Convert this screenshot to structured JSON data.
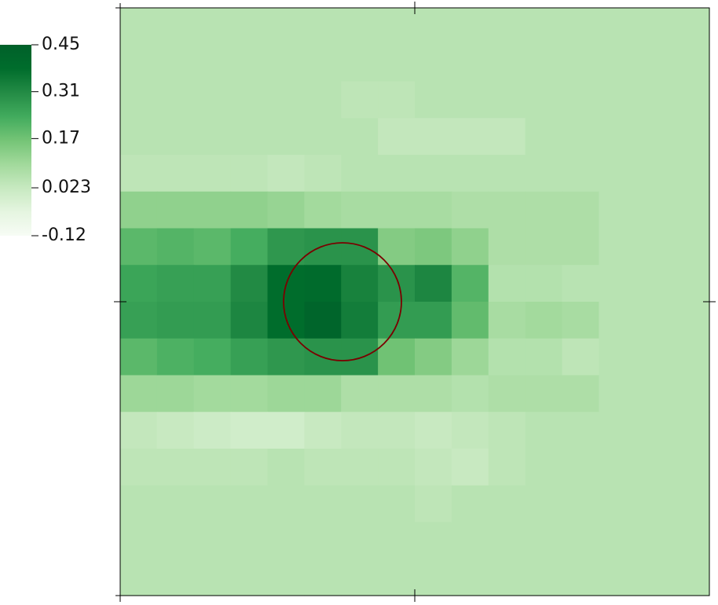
{
  "chart_data": {
    "type": "heatmap",
    "colorscale": [
      "#f7fcf5",
      "#e5f5e0",
      "#c7e9c0",
      "#a1d99b",
      "#74c476",
      "#41ab5d",
      "#238b45",
      "#006d2c",
      "#00602a"
    ],
    "zlim": [
      -0.12,
      0.45
    ],
    "zticks": [
      0.45,
      0.31,
      0.17,
      0.023,
      -0.12
    ],
    "z": [
      [
        0.05,
        0.05,
        0.05,
        0.05,
        0.05,
        0.05,
        0.05,
        0.05,
        0.05,
        0.05,
        0.05,
        0.05,
        0.05,
        0.05,
        0.05,
        0.05
      ],
      [
        0.05,
        0.05,
        0.05,
        0.05,
        0.05,
        0.05,
        0.05,
        0.05,
        0.05,
        0.05,
        0.05,
        0.05,
        0.05,
        0.05,
        0.05,
        0.05
      ],
      [
        0.05,
        0.05,
        0.05,
        0.05,
        0.05,
        0.05,
        0.04,
        0.04,
        0.05,
        0.05,
        0.05,
        0.05,
        0.05,
        0.05,
        0.05,
        0.05
      ],
      [
        0.05,
        0.05,
        0.05,
        0.05,
        0.05,
        0.05,
        0.05,
        0.03,
        0.03,
        0.03,
        0.03,
        0.05,
        0.05,
        0.05,
        0.05,
        0.05
      ],
      [
        0.04,
        0.04,
        0.04,
        0.04,
        0.03,
        0.04,
        0.05,
        0.05,
        0.05,
        0.05,
        0.05,
        0.05,
        0.05,
        0.05,
        0.05,
        0.05
      ],
      [
        0.12,
        0.12,
        0.12,
        0.12,
        0.11,
        0.09,
        0.08,
        0.08,
        0.08,
        0.07,
        0.07,
        0.07,
        0.07,
        0.05,
        0.05,
        0.05
      ],
      [
        0.2,
        0.21,
        0.2,
        0.23,
        0.28,
        0.29,
        0.29,
        0.14,
        0.15,
        0.12,
        0.07,
        0.07,
        0.07,
        0.05,
        0.05,
        0.05
      ],
      [
        0.25,
        0.26,
        0.26,
        0.31,
        0.38,
        0.39,
        0.33,
        0.29,
        0.32,
        0.21,
        0.06,
        0.06,
        0.05,
        0.05,
        0.05,
        0.05
      ],
      [
        0.26,
        0.27,
        0.27,
        0.32,
        0.38,
        0.42,
        0.34,
        0.27,
        0.27,
        0.19,
        0.08,
        0.09,
        0.08,
        0.05,
        0.05,
        0.05
      ],
      [
        0.2,
        0.22,
        0.23,
        0.26,
        0.28,
        0.29,
        0.29,
        0.17,
        0.14,
        0.1,
        0.06,
        0.06,
        0.04,
        0.05,
        0.05,
        0.05
      ],
      [
        0.1,
        0.1,
        0.09,
        0.09,
        0.1,
        0.1,
        0.07,
        0.07,
        0.07,
        0.06,
        0.07,
        0.07,
        0.07,
        0.05,
        0.05,
        0.05
      ],
      [
        0.03,
        0.02,
        0.01,
        0.0,
        0.0,
        0.02,
        0.03,
        0.03,
        0.02,
        0.03,
        0.04,
        0.05,
        0.05,
        0.05,
        0.05,
        0.05
      ],
      [
        0.04,
        0.04,
        0.04,
        0.04,
        0.05,
        0.04,
        0.04,
        0.04,
        0.03,
        0.02,
        0.04,
        0.05,
        0.05,
        0.05,
        0.05,
        0.05
      ],
      [
        0.05,
        0.05,
        0.05,
        0.05,
        0.05,
        0.05,
        0.05,
        0.05,
        0.04,
        0.05,
        0.05,
        0.05,
        0.05,
        0.05,
        0.05,
        0.05
      ],
      [
        0.05,
        0.05,
        0.05,
        0.05,
        0.05,
        0.05,
        0.05,
        0.05,
        0.05,
        0.05,
        0.05,
        0.05,
        0.05,
        0.05,
        0.05,
        0.05
      ],
      [
        0.05,
        0.05,
        0.05,
        0.05,
        0.05,
        0.05,
        0.05,
        0.05,
        0.05,
        0.05,
        0.05,
        0.05,
        0.05,
        0.05,
        0.05,
        0.05
      ]
    ]
  }
}
